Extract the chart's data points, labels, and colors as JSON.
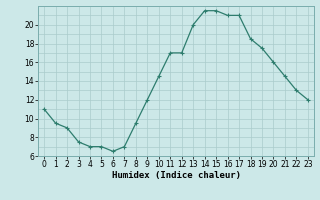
{
  "x": [
    0,
    1,
    2,
    3,
    4,
    5,
    6,
    7,
    8,
    9,
    10,
    11,
    12,
    13,
    14,
    15,
    16,
    17,
    18,
    19,
    20,
    21,
    22,
    23
  ],
  "y": [
    11,
    9.5,
    9,
    7.5,
    7,
    7,
    6.5,
    7,
    9.5,
    12,
    14.5,
    17,
    17,
    20,
    21.5,
    21.5,
    21,
    21,
    18.5,
    17.5,
    16,
    14.5,
    13,
    12
  ],
  "line_color": "#2e7d6e",
  "marker": "+",
  "marker_size": 3,
  "bg_color": "#cce8e8",
  "grid_color": "#aacccc",
  "xlabel": "Humidex (Indice chaleur)",
  "xlim": [
    -0.5,
    23.5
  ],
  "ylim": [
    6,
    22
  ],
  "yticks": [
    6,
    8,
    10,
    12,
    14,
    16,
    18,
    20
  ],
  "xticks": [
    0,
    1,
    2,
    3,
    4,
    5,
    6,
    7,
    8,
    9,
    10,
    11,
    12,
    13,
    14,
    15,
    16,
    17,
    18,
    19,
    20,
    21,
    22,
    23
  ],
  "label_fontsize": 6.5,
  "tick_fontsize": 5.5
}
